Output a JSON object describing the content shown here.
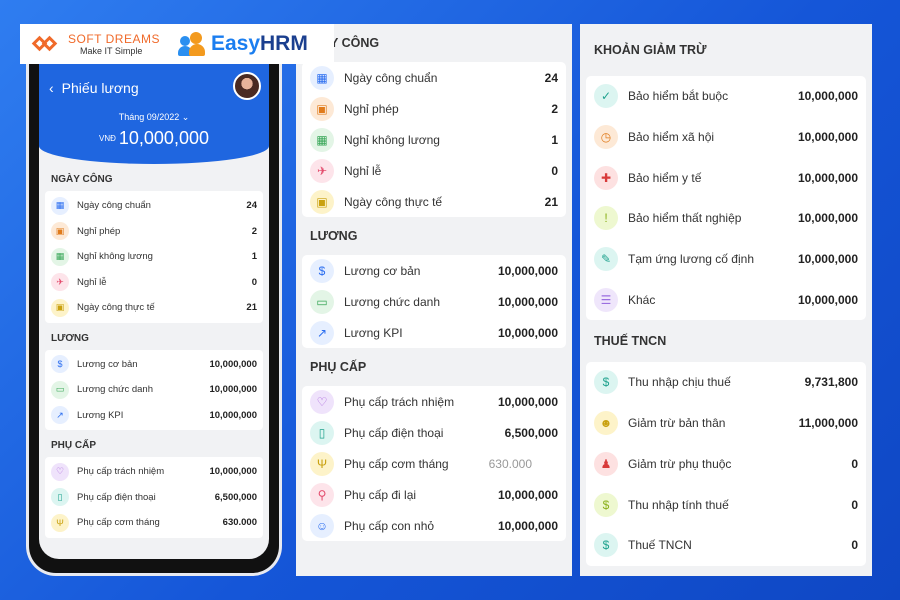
{
  "logos": {
    "softdreams_name": "SOFT DREAMS",
    "softdreams_tagline": "Make IT Simple",
    "easyhrm_easy": "Easy",
    "easyhrm_hrm": "HRM"
  },
  "phone": {
    "title": "Phiếu lương",
    "back_icon": "‹",
    "month": "Tháng 09/2022 ⌄",
    "currency": "VNĐ",
    "amount": "10,000,000",
    "sections": [
      {
        "title": "NGÀY CÔNG",
        "rows": [
          {
            "icon": "▦",
            "color": "blue",
            "label": "Ngày công chuẩn",
            "value": "24"
          },
          {
            "icon": "▣",
            "color": "orange",
            "label": "Nghỉ phép",
            "value": "2"
          },
          {
            "icon": "▦",
            "color": "green",
            "label": "Nghỉ không lương",
            "value": "1"
          },
          {
            "icon": "✈",
            "color": "pink",
            "label": "Nghỉ lễ",
            "value": "0"
          },
          {
            "icon": "▣",
            "color": "yellow",
            "label": "Ngày công thực tế",
            "value": "21"
          }
        ]
      },
      {
        "title": "LƯƠNG",
        "rows": [
          {
            "icon": "$",
            "color": "blue",
            "label": "Lương cơ bản",
            "value": "10,000,000"
          },
          {
            "icon": "▭",
            "color": "green",
            "label": "Lương chức danh",
            "value": "10,000,000"
          },
          {
            "icon": "↗",
            "color": "blue",
            "label": "Lương KPI",
            "value": "10,000,000"
          }
        ]
      },
      {
        "title": "PHỤ CẤP",
        "rows": [
          {
            "icon": "♡",
            "color": "purple",
            "label": "Phụ cấp trách nhiệm",
            "value": "10,000,000"
          },
          {
            "icon": "▯",
            "color": "teal",
            "label": "Phụ cấp điện thoại",
            "value": "6,500,000"
          },
          {
            "icon": "Ψ",
            "color": "yellow",
            "label": "Phụ cấp cơm tháng",
            "value": "630.000"
          }
        ]
      }
    ]
  },
  "panel_middle": {
    "top_title": "Y CÔNG",
    "sections": [
      {
        "title": "",
        "rows": [
          {
            "icon": "▦",
            "color": "blue",
            "label": "Ngày công chuẩn",
            "value": "24"
          },
          {
            "icon": "▣",
            "color": "orange",
            "label": "Nghỉ phép",
            "value": "2"
          },
          {
            "icon": "▦",
            "color": "green",
            "label": "Nghỉ không lương",
            "value": "1"
          },
          {
            "icon": "✈",
            "color": "pink",
            "label": "Nghỉ lễ",
            "value": "0"
          },
          {
            "icon": "▣",
            "color": "yellow",
            "label": "Ngày công thực tế",
            "value": "21"
          }
        ]
      },
      {
        "title": "LƯƠNG",
        "rows": [
          {
            "icon": "$",
            "color": "blue",
            "label": "Lương cơ bản",
            "value": "10,000,000"
          },
          {
            "icon": "▭",
            "color": "green",
            "label": "Lương chức danh",
            "value": "10,000,000"
          },
          {
            "icon": "↗",
            "color": "blue",
            "label": "Lương KPI",
            "value": "10,000,000"
          }
        ]
      },
      {
        "title": "PHỤ CẤP",
        "rows": [
          {
            "icon": "♡",
            "color": "purple",
            "label": "Phụ cấp trách nhiệm",
            "value": "10,000,000"
          },
          {
            "icon": "▯",
            "color": "teal",
            "label": "Phụ cấp điện thoại",
            "value": "6,500,000"
          },
          {
            "icon": "Ψ",
            "color": "yellow",
            "label": "Phụ cấp cơm tháng",
            "value": "630.000",
            "muted": true
          },
          {
            "icon": "⚲",
            "color": "pink",
            "label": "Phụ cấp đi lại",
            "value": "10,000,000"
          },
          {
            "icon": "☺",
            "color": "blue",
            "label": "Phụ cấp con nhỏ",
            "value": "10,000,000"
          }
        ]
      }
    ]
  },
  "panel_right": {
    "sections": [
      {
        "title": "KHOẢN GIẢM TRỪ",
        "rows": [
          {
            "icon": "✓",
            "color": "teal",
            "label": "Bảo hiểm bắt buộc",
            "value": "10,000,000"
          },
          {
            "icon": "◷",
            "color": "orange",
            "label": "Bảo hiểm xã hội",
            "value": "10,000,000"
          },
          {
            "icon": "✚",
            "color": "red",
            "label": "Bảo hiểm y tế",
            "value": "10,000,000"
          },
          {
            "icon": "!",
            "color": "lime",
            "label": "Bảo hiểm thất nghiệp",
            "value": "10,000,000"
          },
          {
            "icon": "✎",
            "color": "teal",
            "label": "Tạm ứng lương cố định",
            "value": "10,000,000"
          },
          {
            "icon": "☰",
            "color": "lav",
            "label": "Khác",
            "value": "10,000,000"
          }
        ]
      },
      {
        "title": "THUẾ TNCN",
        "rows": [
          {
            "icon": "$",
            "color": "teal",
            "label": "Thu nhập chịu thuế",
            "value": "9,731,800"
          },
          {
            "icon": "☻",
            "color": "yellow",
            "label": "Giảm trừ bản thân",
            "value": "11,000,000"
          },
          {
            "icon": "♟",
            "color": "red",
            "label": "Giảm trừ phụ thuộc",
            "value": "0"
          },
          {
            "icon": "$",
            "color": "lime",
            "label": "Thu nhập tính thuế",
            "value": "0"
          },
          {
            "icon": "$",
            "color": "teal",
            "label": "Thuế TNCN",
            "value": "0"
          }
        ]
      }
    ]
  }
}
